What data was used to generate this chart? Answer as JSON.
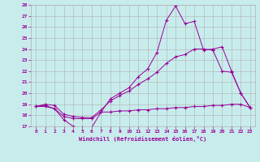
{
  "xlabel": "Windchill (Refroidissement éolien,°C)",
  "bg_color": "#c8ecec",
  "line_color": "#990099",
  "grid_color": "#b0b0b0",
  "xlim": [
    -0.5,
    23.5
  ],
  "ylim": [
    17,
    28
  ],
  "xticks": [
    0,
    1,
    2,
    3,
    4,
    5,
    6,
    7,
    8,
    9,
    10,
    11,
    12,
    13,
    14,
    15,
    16,
    17,
    18,
    19,
    20,
    21,
    22,
    23
  ],
  "yticks": [
    17,
    18,
    19,
    20,
    21,
    22,
    23,
    24,
    25,
    26,
    27,
    28
  ],
  "line1_x": [
    0,
    1,
    2,
    3,
    4,
    5,
    6,
    7,
    8,
    9,
    10,
    11,
    12,
    13,
    14,
    15,
    16,
    17,
    18,
    19,
    20,
    21,
    22,
    23
  ],
  "line1_y": [
    18.8,
    18.9,
    18.6,
    17.6,
    17.0,
    16.9,
    16.9,
    18.3,
    19.5,
    20.0,
    20.5,
    21.5,
    22.2,
    23.7,
    26.6,
    27.9,
    26.3,
    26.5,
    23.9,
    24.0,
    24.2,
    22.0,
    20.0,
    18.7
  ],
  "line2_x": [
    0,
    1,
    2,
    3,
    4,
    5,
    6,
    7,
    8,
    9,
    10,
    11,
    12,
    13,
    14,
    15,
    16,
    17,
    18,
    19,
    20,
    21,
    22,
    23
  ],
  "line2_y": [
    18.8,
    19.0,
    18.9,
    18.1,
    17.9,
    17.8,
    17.8,
    18.5,
    19.3,
    19.8,
    20.2,
    20.8,
    21.3,
    21.9,
    22.7,
    23.3,
    23.5,
    24.0,
    24.0,
    23.9,
    22.0,
    21.9,
    20.0,
    18.7
  ],
  "line3_x": [
    0,
    1,
    2,
    3,
    4,
    5,
    6,
    7,
    8,
    9,
    10,
    11,
    12,
    13,
    14,
    15,
    16,
    17,
    18,
    19,
    20,
    21,
    22,
    23
  ],
  "line3_y": [
    18.8,
    18.8,
    18.6,
    17.9,
    17.7,
    17.7,
    17.7,
    18.3,
    18.3,
    18.4,
    18.4,
    18.5,
    18.5,
    18.6,
    18.6,
    18.7,
    18.7,
    18.8,
    18.8,
    18.9,
    18.9,
    19.0,
    19.0,
    18.7
  ]
}
